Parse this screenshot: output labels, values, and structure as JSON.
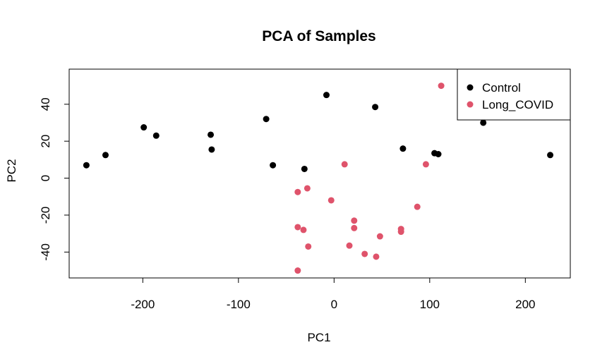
{
  "chart_data": {
    "type": "scatter",
    "title": "PCA of Samples",
    "xlabel": "PC1",
    "ylabel": "PC2",
    "xlim": [
      -277,
      247
    ],
    "ylim": [
      -54,
      59
    ],
    "xticks": [
      -200,
      -100,
      0,
      100,
      200
    ],
    "yticks": [
      -40,
      -20,
      0,
      20,
      40
    ],
    "xtick_labels": [
      "-200",
      "-100",
      "0",
      "100",
      "200"
    ],
    "ytick_labels": [
      "-40",
      "-20",
      "0",
      "20",
      "40"
    ],
    "grid": false,
    "legend_position": "top-right",
    "series": [
      {
        "name": "Control",
        "color": "#000000",
        "points": [
          {
            "x": -259,
            "y": 7
          },
          {
            "x": -239,
            "y": 12.5
          },
          {
            "x": -199,
            "y": 27.5
          },
          {
            "x": -186,
            "y": 23
          },
          {
            "x": -129,
            "y": 23.5
          },
          {
            "x": -128,
            "y": 15.5
          },
          {
            "x": -71,
            "y": 32
          },
          {
            "x": -64,
            "y": 7
          },
          {
            "x": -31,
            "y": 5
          },
          {
            "x": -8,
            "y": 45
          },
          {
            "x": 43,
            "y": 38.5
          },
          {
            "x": 72,
            "y": 16
          },
          {
            "x": 105,
            "y": 13.5
          },
          {
            "x": 109,
            "y": 13
          },
          {
            "x": 156,
            "y": 30
          },
          {
            "x": 226,
            "y": 12.5
          }
        ]
      },
      {
        "name": "Long_COVID",
        "color": "#DF536B",
        "points": [
          {
            "x": 112,
            "y": 50
          },
          {
            "x": 11,
            "y": 7.5
          },
          {
            "x": 96,
            "y": 7.5
          },
          {
            "x": -28,
            "y": -5.5
          },
          {
            "x": -38,
            "y": -7.5
          },
          {
            "x": -3,
            "y": -12
          },
          {
            "x": 87,
            "y": -15.5
          },
          {
            "x": 21,
            "y": -23
          },
          {
            "x": 21,
            "y": -27
          },
          {
            "x": -38,
            "y": -26.5
          },
          {
            "x": -32,
            "y": -28
          },
          {
            "x": 70,
            "y": -27.5
          },
          {
            "x": 70,
            "y": -29
          },
          {
            "x": 48,
            "y": -31.5
          },
          {
            "x": 16,
            "y": -36.5
          },
          {
            "x": -27,
            "y": -37
          },
          {
            "x": 32,
            "y": -41
          },
          {
            "x": 44,
            "y": -42.5
          },
          {
            "x": -38,
            "y": -50
          }
        ]
      }
    ]
  }
}
